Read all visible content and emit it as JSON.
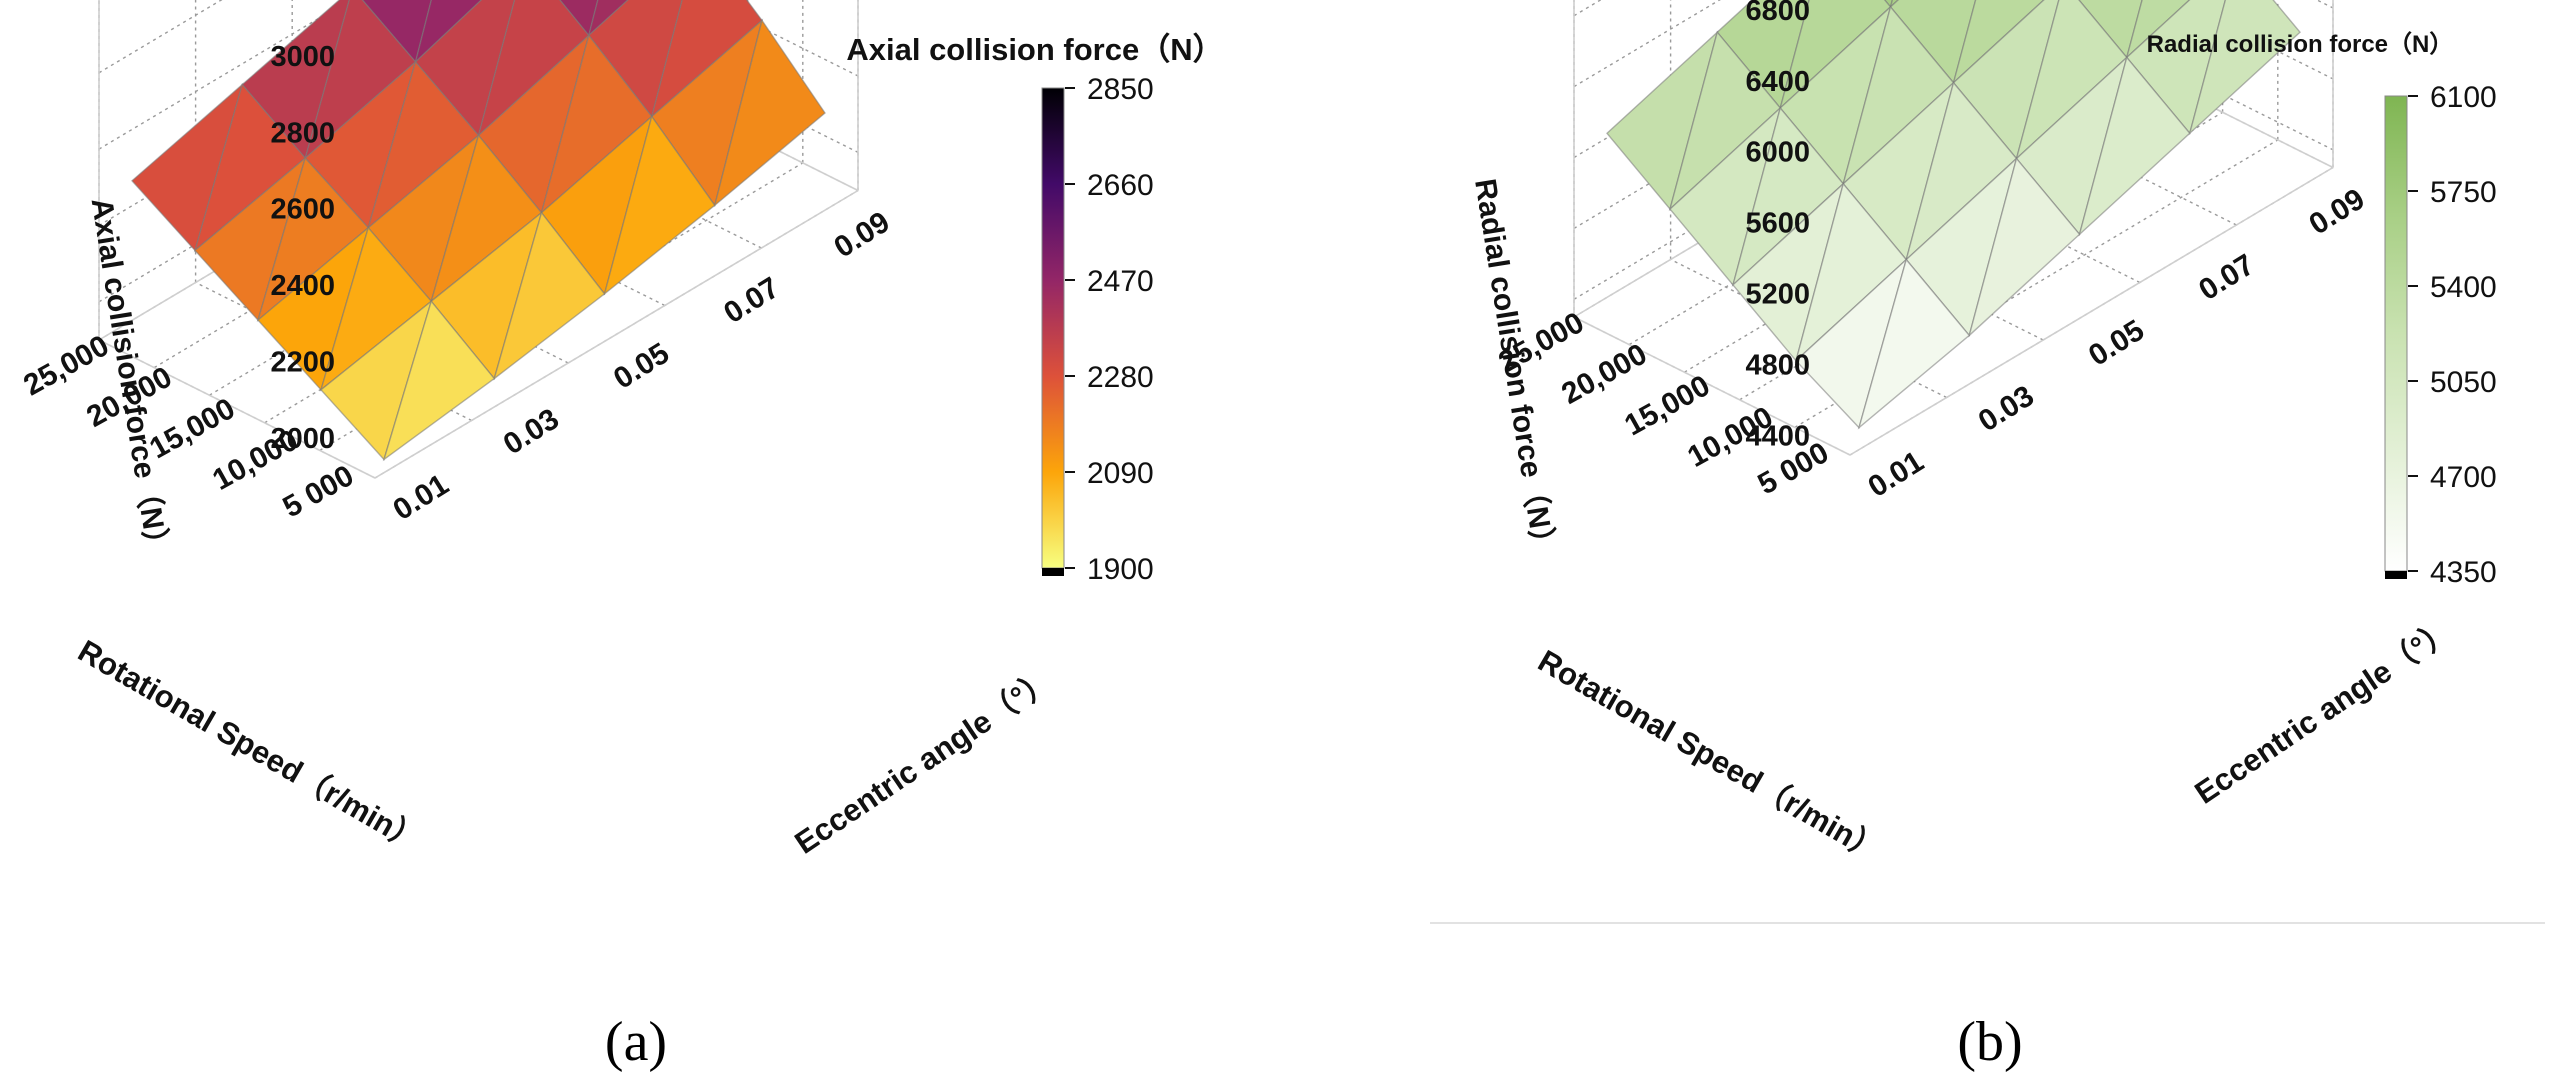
{
  "panels": [
    {
      "panel_label": "(a)",
      "colorbar": {
        "title": "Axial collision force（N）",
        "ticks": [
          "2850",
          "2660",
          "2470",
          "2280",
          "2090",
          "1900"
        ],
        "colors": [
          "#000004",
          "#420a68",
          "#932667",
          "#dd513a",
          "#fca50a",
          "#f7ff80"
        ]
      }
    },
    {
      "panel_label": "(b)",
      "colorbar": {
        "title": "Radial collision force（N）",
        "ticks": [
          "6100",
          "5750",
          "5400",
          "5050",
          "4700",
          "4350"
        ],
        "colors": [
          "#7fb552",
          "#a8cf85",
          "#c9e2b1",
          "#e3f0d6",
          "#ffffff"
        ]
      }
    }
  ],
  "chart_data": [
    {
      "type": "surface3d",
      "zlabel": "Axial collision force（N）",
      "xlabel": "Rotational Speed（r/min）",
      "ylabel": "Eccentric angle（°）",
      "x_ticks": [
        "5 000",
        "10,000",
        "15,000",
        "20,000",
        "25,000"
      ],
      "y_ticks": [
        "0.01",
        "0.03",
        "0.05",
        "0.07",
        "0.09"
      ],
      "z_ticks": [
        "2000",
        "2200",
        "2400",
        "2600",
        "2800",
        "3000"
      ],
      "x": [
        5000,
        10000,
        15000,
        20000,
        25000
      ],
      "y": [
        0.01,
        0.03,
        0.05,
        0.07,
        0.09
      ],
      "z": [
        [
          1900,
          1940,
          1990,
          2050,
          2120
        ],
        [
          2000,
          2060,
          2120,
          2200,
          2280
        ],
        [
          2100,
          2170,
          2240,
          2330,
          2420
        ],
        [
          2200,
          2270,
          2350,
          2450,
          2560
        ],
        [
          2300,
          2380,
          2460,
          2580,
          2700
        ]
      ],
      "zlim": [
        1900,
        3100
      ],
      "colorbar_range": [
        1900,
        2850
      ]
    },
    {
      "type": "surface3d",
      "zlabel": "Radial collision force（N）",
      "xlabel": "Rotational Speed（r/min）",
      "ylabel": "Eccentric angle（°）",
      "x_ticks": [
        "5 000",
        "10,000",
        "15,000",
        "20,000",
        "25,000"
      ],
      "y_ticks": [
        "0.01",
        "0.03",
        "0.05",
        "0.07",
        "0.09"
      ],
      "z_ticks": [
        "4400",
        "4800",
        "5200",
        "5600",
        "6000",
        "6400",
        "6800"
      ],
      "x": [
        5000,
        10000,
        15000,
        20000,
        25000
      ],
      "y": [
        0.01,
        0.03,
        0.05,
        0.07,
        0.09
      ],
      "z": [
        [
          4350,
          4500,
          4700,
          4900,
          5100
        ],
        [
          4550,
          4750,
          4950,
          5150,
          5350
        ],
        [
          4800,
          5000,
          5200,
          5400,
          5600
        ],
        [
          5050,
          5250,
          5450,
          5650,
          5900
        ],
        [
          5300,
          5500,
          5700,
          5900,
          6100
        ]
      ],
      "zlim": [
        4300,
        7000
      ],
      "colorbar_range": [
        4350,
        6100
      ]
    }
  ]
}
